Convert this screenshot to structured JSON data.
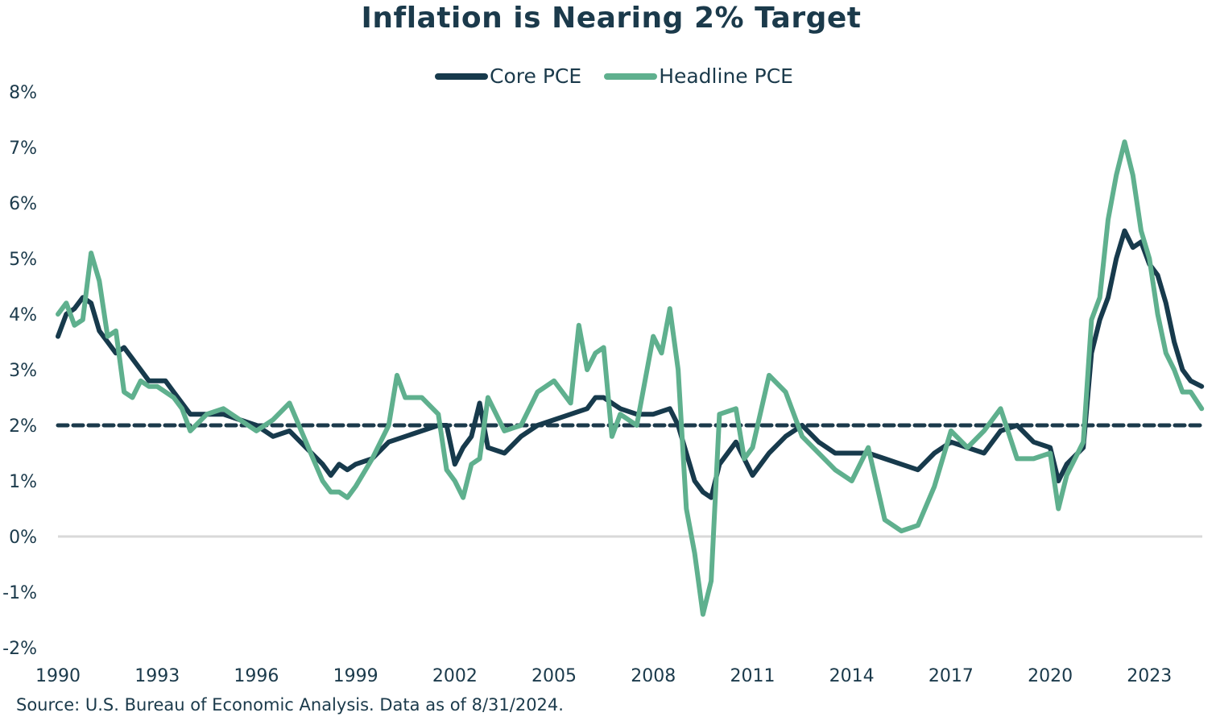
{
  "chart_data": {
    "type": "line",
    "title": "Inflation is Nearing 2% Target",
    "xlabel": "",
    "ylabel": "",
    "xlim": [
      1990,
      2024.6
    ],
    "ylim": [
      -2,
      8
    ],
    "x_ticks": [
      1990,
      1993,
      1996,
      1999,
      2002,
      2005,
      2008,
      2011,
      2014,
      2017,
      2020,
      2023
    ],
    "x_tick_labels": [
      "1990",
      "1993",
      "1996",
      "1999",
      "2002",
      "2005",
      "2008",
      "2011",
      "2014",
      "2017",
      "2020",
      "2023"
    ],
    "y_ticks": [
      8,
      7,
      6,
      5,
      4,
      3,
      2,
      1,
      0,
      -1,
      -2
    ],
    "y_tick_labels": [
      "8%",
      "7%",
      "6%",
      "5%",
      "4%",
      "3%",
      "2%",
      "1%",
      "0%",
      "-1%",
      "-2%"
    ],
    "grid": false,
    "legend_position": "top-center",
    "reference_lines": [
      {
        "name": "2% Target",
        "y": 2,
        "style": "dashed",
        "color": "#1b3a4b"
      },
      {
        "name": "Zero line",
        "y": 0,
        "style": "solid",
        "color": "#d9d9d9"
      }
    ],
    "series": [
      {
        "name": "Core PCE",
        "color": "#173a4c",
        "x": [
          1990.0,
          1990.25,
          1990.5,
          1990.75,
          1991.0,
          1991.25,
          1991.5,
          1991.75,
          1992.0,
          1992.25,
          1992.5,
          1992.75,
          1993.0,
          1993.25,
          1993.5,
          1993.75,
          1994.0,
          1994.5,
          1995.0,
          1995.5,
          1996.0,
          1996.5,
          1997.0,
          1997.5,
          1998.0,
          1998.25,
          1998.5,
          1998.75,
          1999.0,
          1999.5,
          2000.0,
          2000.5,
          2001.0,
          2001.5,
          2001.75,
          2002.0,
          2002.25,
          2002.5,
          2002.75,
          2003.0,
          2003.5,
          2004.0,
          2004.5,
          2005.0,
          2005.5,
          2006.0,
          2006.25,
          2006.5,
          2007.0,
          2007.5,
          2008.0,
          2008.5,
          2008.75,
          2009.0,
          2009.25,
          2009.5,
          2009.75,
          2010.0,
          2010.5,
          2010.75,
          2011.0,
          2011.5,
          2012.0,
          2012.5,
          2013.0,
          2013.5,
          2014.0,
          2014.5,
          2015.0,
          2015.5,
          2016.0,
          2016.5,
          2017.0,
          2017.5,
          2018.0,
          2018.5,
          2019.0,
          2019.5,
          2020.0,
          2020.25,
          2020.5,
          2021.0,
          2021.25,
          2021.5,
          2021.75,
          2022.0,
          2022.25,
          2022.5,
          2022.75,
          2023.0,
          2023.25,
          2023.5,
          2023.75,
          2024.0,
          2024.25,
          2024.58
        ],
        "values": [
          3.6,
          4.0,
          4.1,
          4.3,
          4.2,
          3.7,
          3.5,
          3.3,
          3.4,
          3.2,
          3.0,
          2.8,
          2.8,
          2.8,
          2.6,
          2.4,
          2.2,
          2.2,
          2.2,
          2.1,
          2.0,
          1.8,
          1.9,
          1.6,
          1.3,
          1.1,
          1.3,
          1.2,
          1.3,
          1.4,
          1.7,
          1.8,
          1.9,
          2.0,
          2.0,
          1.3,
          1.6,
          1.8,
          2.4,
          1.6,
          1.5,
          1.8,
          2.0,
          2.1,
          2.2,
          2.3,
          2.5,
          2.5,
          2.3,
          2.2,
          2.2,
          2.3,
          2.0,
          1.5,
          1.0,
          0.8,
          0.7,
          1.3,
          1.7,
          1.4,
          1.1,
          1.5,
          1.8,
          2.0,
          1.7,
          1.5,
          1.5,
          1.5,
          1.4,
          1.3,
          1.2,
          1.5,
          1.7,
          1.6,
          1.5,
          1.9,
          2.0,
          1.7,
          1.6,
          1.0,
          1.3,
          1.6,
          3.3,
          3.9,
          4.3,
          5.0,
          5.5,
          5.2,
          5.3,
          4.9,
          4.7,
          4.2,
          3.5,
          3.0,
          2.8,
          2.7
        ]
      },
      {
        "name": "Headline PCE",
        "color": "#5fb08e",
        "x": [
          1990.0,
          1990.25,
          1990.5,
          1990.75,
          1991.0,
          1991.25,
          1991.5,
          1991.75,
          1992.0,
          1992.25,
          1992.5,
          1992.75,
          1993.0,
          1993.25,
          1993.5,
          1993.75,
          1994.0,
          1994.5,
          1995.0,
          1995.5,
          1996.0,
          1996.5,
          1997.0,
          1997.5,
          1998.0,
          1998.25,
          1998.5,
          1998.75,
          1999.0,
          1999.5,
          2000.0,
          2000.25,
          2000.5,
          2001.0,
          2001.5,
          2001.75,
          2002.0,
          2002.25,
          2002.5,
          2002.75,
          2003.0,
          2003.5,
          2004.0,
          2004.5,
          2005.0,
          2005.5,
          2005.75,
          2006.0,
          2006.25,
          2006.5,
          2006.75,
          2007.0,
          2007.5,
          2008.0,
          2008.25,
          2008.5,
          2008.75,
          2009.0,
          2009.25,
          2009.5,
          2009.75,
          2010.0,
          2010.5,
          2010.75,
          2011.0,
          2011.5,
          2012.0,
          2012.5,
          2013.0,
          2013.5,
          2014.0,
          2014.5,
          2015.0,
          2015.5,
          2016.0,
          2016.5,
          2017.0,
          2017.5,
          2018.0,
          2018.5,
          2019.0,
          2019.5,
          2020.0,
          2020.25,
          2020.5,
          2021.0,
          2021.25,
          2021.5,
          2021.75,
          2022.0,
          2022.25,
          2022.5,
          2022.75,
          2023.0,
          2023.25,
          2023.5,
          2023.75,
          2024.0,
          2024.25,
          2024.58
        ],
        "values": [
          4.0,
          4.2,
          3.8,
          3.9,
          5.1,
          4.6,
          3.6,
          3.7,
          2.6,
          2.5,
          2.8,
          2.7,
          2.7,
          2.6,
          2.5,
          2.3,
          1.9,
          2.2,
          2.3,
          2.1,
          1.9,
          2.1,
          2.4,
          1.7,
          1.0,
          0.8,
          0.8,
          0.7,
          0.9,
          1.4,
          2.0,
          2.9,
          2.5,
          2.5,
          2.2,
          1.2,
          1.0,
          0.7,
          1.3,
          1.4,
          2.5,
          1.9,
          2.0,
          2.6,
          2.8,
          2.4,
          3.8,
          3.0,
          3.3,
          3.4,
          1.8,
          2.2,
          2.0,
          3.6,
          3.3,
          4.1,
          3.0,
          0.5,
          -0.3,
          -1.4,
          -0.8,
          2.2,
          2.3,
          1.4,
          1.6,
          2.9,
          2.6,
          1.8,
          1.5,
          1.2,
          1.0,
          1.6,
          0.3,
          0.1,
          0.2,
          0.9,
          1.9,
          1.6,
          1.9,
          2.3,
          1.4,
          1.4,
          1.5,
          0.5,
          1.1,
          1.7,
          3.9,
          4.3,
          5.7,
          6.5,
          7.1,
          6.5,
          5.5,
          5.0,
          4.0,
          3.3,
          3.0,
          2.6,
          2.6,
          2.3
        ]
      }
    ],
    "annotations": [],
    "source_note": "Source: U.S. Bureau of Economic Analysis. Data as of 8/31/2024."
  }
}
